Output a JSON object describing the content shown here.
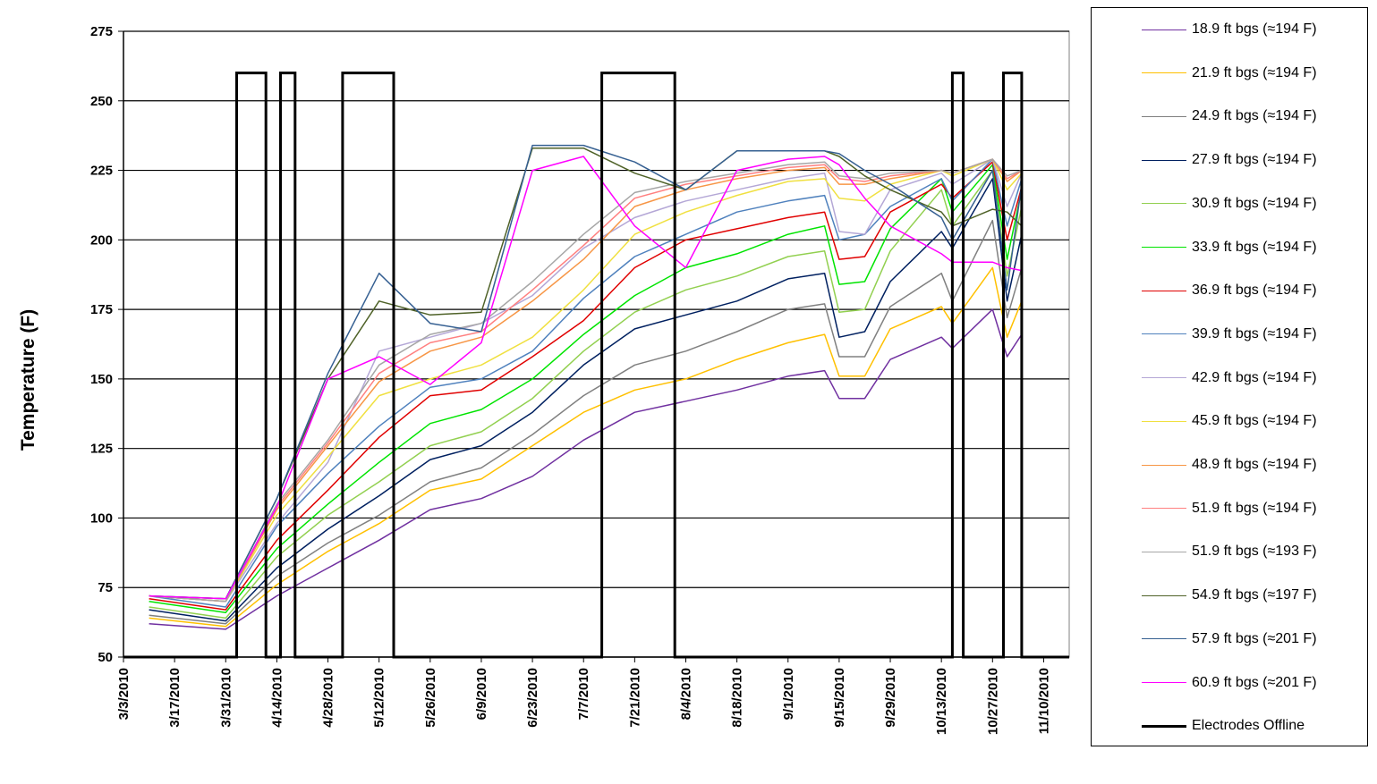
{
  "chart_data": {
    "type": "line",
    "ylabel": "Temperature (F)",
    "xlabel": "",
    "ylim": [
      50,
      275
    ],
    "yticks": [
      50,
      75,
      100,
      125,
      150,
      175,
      200,
      225,
      250,
      275
    ],
    "xlim": [
      "3/3/2010",
      "11/17/2010"
    ],
    "xticks": [
      "3/3/2010",
      "3/17/2010",
      "3/31/2010",
      "4/14/2010",
      "4/28/2010",
      "5/12/2010",
      "5/26/2010",
      "6/9/2010",
      "6/23/2010",
      "7/7/2010",
      "7/21/2010",
      "8/4/2010",
      "8/18/2010",
      "9/1/2010",
      "9/15/2010",
      "9/29/2010",
      "10/13/2010",
      "10/27/2010",
      "11/10/2010"
    ],
    "grid": "horizontal",
    "legend_position": "right",
    "x_dates": [
      "3/10/2010",
      "3/31/2010",
      "4/14/2010",
      "4/28/2010",
      "5/12/2010",
      "5/26/2010",
      "6/9/2010",
      "6/23/2010",
      "7/7/2010",
      "7/21/2010",
      "8/4/2010",
      "8/18/2010",
      "9/1/2010",
      "9/11/2010",
      "9/15/2010",
      "9/22/2010",
      "9/29/2010",
      "10/13/2010",
      "10/16/2010",
      "10/27/2010",
      "10/31/2010",
      "11/4/2010"
    ],
    "series": [
      {
        "name": "18.9 ft bgs (≈194 F)",
        "color": "#7030A0",
        "values": [
          62,
          60,
          72,
          82,
          92,
          103,
          107,
          115,
          128,
          138,
          142,
          146,
          151,
          153,
          143,
          143,
          157,
          165,
          161,
          175,
          158,
          166
        ]
      },
      {
        "name": "21.9 ft bgs (≈194 F)",
        "color": "#FFC000",
        "values": [
          64,
          61,
          76,
          88,
          98,
          110,
          114,
          126,
          138,
          146,
          150,
          157,
          163,
          166,
          151,
          151,
          168,
          176,
          170,
          190,
          165,
          178
        ]
      },
      {
        "name": "24.9 ft bgs (≈194 F)",
        "color": "#808080",
        "values": [
          65,
          62,
          79,
          91,
          101,
          113,
          118,
          130,
          144,
          155,
          160,
          167,
          175,
          177,
          158,
          158,
          176,
          188,
          178,
          207,
          172,
          190
        ]
      },
      {
        "name": "27.9 ft bgs (≈194 F)",
        "color": "#002060",
        "values": [
          67,
          63,
          82,
          96,
          108,
          121,
          126,
          138,
          155,
          168,
          173,
          178,
          186,
          188,
          165,
          167,
          185,
          203,
          197,
          222,
          178,
          202
        ]
      },
      {
        "name": "30.9 ft bgs (≈194 F)",
        "color": "#92D050",
        "values": [
          68,
          64,
          86,
          101,
          113,
          126,
          131,
          143,
          160,
          174,
          182,
          187,
          194,
          196,
          174,
          175,
          196,
          218,
          205,
          225,
          187,
          212
        ]
      },
      {
        "name": "33.9 ft bgs (≈194 F)",
        "color": "#00E400",
        "values": [
          70,
          66,
          89,
          105,
          120,
          134,
          139,
          150,
          166,
          180,
          190,
          195,
          202,
          205,
          184,
          185,
          204,
          222,
          210,
          227,
          193,
          218
        ]
      },
      {
        "name": "36.9 ft bgs (≈194 F)",
        "color": "#E00000",
        "values": [
          71,
          67,
          92,
          110,
          129,
          144,
          146,
          158,
          171,
          190,
          200,
          204,
          208,
          210,
          193,
          194,
          210,
          220,
          215,
          228,
          200,
          219
        ]
      },
      {
        "name": "39.9 ft bgs (≈194 F)",
        "color": "#4F81BD",
        "values": [
          72,
          68,
          97,
          116,
          133,
          147,
          150,
          160,
          179,
          194,
          202,
          210,
          214,
          216,
          200,
          202,
          212,
          222,
          214,
          229,
          205,
          222
        ]
      },
      {
        "name": "42.9 ft bgs (≈194 F)",
        "color": "#B4A7D6",
        "values": [
          72,
          70,
          98,
          120,
          160,
          165,
          170,
          180,
          197,
          208,
          214,
          218,
          222,
          224,
          203,
          202,
          218,
          224,
          220,
          229,
          212,
          224
        ]
      },
      {
        "name": "45.9 ft bgs (≈194 F)",
        "color": "#F0E040",
        "values": [
          72,
          70,
          101,
          122,
          144,
          150,
          155,
          165,
          182,
          202,
          210,
          216,
          221,
          222,
          215,
          214,
          220,
          225,
          223,
          229,
          218,
          224
        ]
      },
      {
        "name": "48.9 ft bgs (≈194 F)",
        "color": "#F79646",
        "values": [
          72,
          70,
          103,
          126,
          149,
          160,
          165,
          178,
          193,
          212,
          218,
          222,
          225,
          226,
          220,
          220,
          222,
          225,
          224,
          229,
          221,
          225
        ]
      },
      {
        "name": "51.9 ft bgs (≈194 F)",
        "color": "#FF8080",
        "values": [
          72,
          70,
          104,
          127,
          152,
          163,
          167,
          182,
          198,
          215,
          220,
          223,
          226,
          227,
          222,
          221,
          223,
          225,
          224,
          229,
          222,
          225
        ]
      },
      {
        "name": "51.9 ft bgs (≈193 F)",
        "color": "#A6A6A6",
        "values": [
          72,
          70,
          105,
          128,
          155,
          166,
          170,
          185,
          202,
          217,
          221,
          224,
          227,
          228,
          223,
          222,
          224,
          225,
          224,
          229,
          223,
          225
        ]
      },
      {
        "name": "54.9 ft bgs (≈197 F)",
        "color": "#4F6228",
        "values": [
          72,
          71,
          107,
          150,
          178,
          173,
          174,
          233,
          233,
          224,
          218,
          232,
          232,
          232,
          230,
          223,
          218,
          210,
          205,
          211,
          210,
          205
        ]
      },
      {
        "name": "57.9 ft bgs (≈201 F)",
        "color": "#366092",
        "values": [
          72,
          71,
          107,
          152,
          188,
          170,
          167,
          234,
          234,
          228,
          218,
          232,
          232,
          232,
          231,
          225,
          220,
          208,
          200,
          225,
          182,
          220
        ]
      },
      {
        "name": "60.9 ft bgs (≈201 F)",
        "color": "#FF00FF",
        "values": [
          72,
          71,
          104,
          150,
          158,
          148,
          163,
          225,
          230,
          205,
          190,
          225,
          229,
          230,
          227,
          215,
          205,
          195,
          192,
          192,
          190,
          189
        ]
      },
      {
        "name": "Electrodes Offline",
        "color": "#000000",
        "values": []
      }
    ],
    "offline_periods": [
      {
        "start": "4/3/2010",
        "end": "4/11/2010"
      },
      {
        "start": "4/15/2010",
        "end": "4/19/2010"
      },
      {
        "start": "5/2/2010",
        "end": "5/16/2010"
      },
      {
        "start": "7/12/2010",
        "end": "8/1/2010"
      },
      {
        "start": "10/16/2010",
        "end": "10/19/2010"
      },
      {
        "start": "10/30/2010",
        "end": "11/4/2010"
      }
    ],
    "offline_level": 260
  }
}
